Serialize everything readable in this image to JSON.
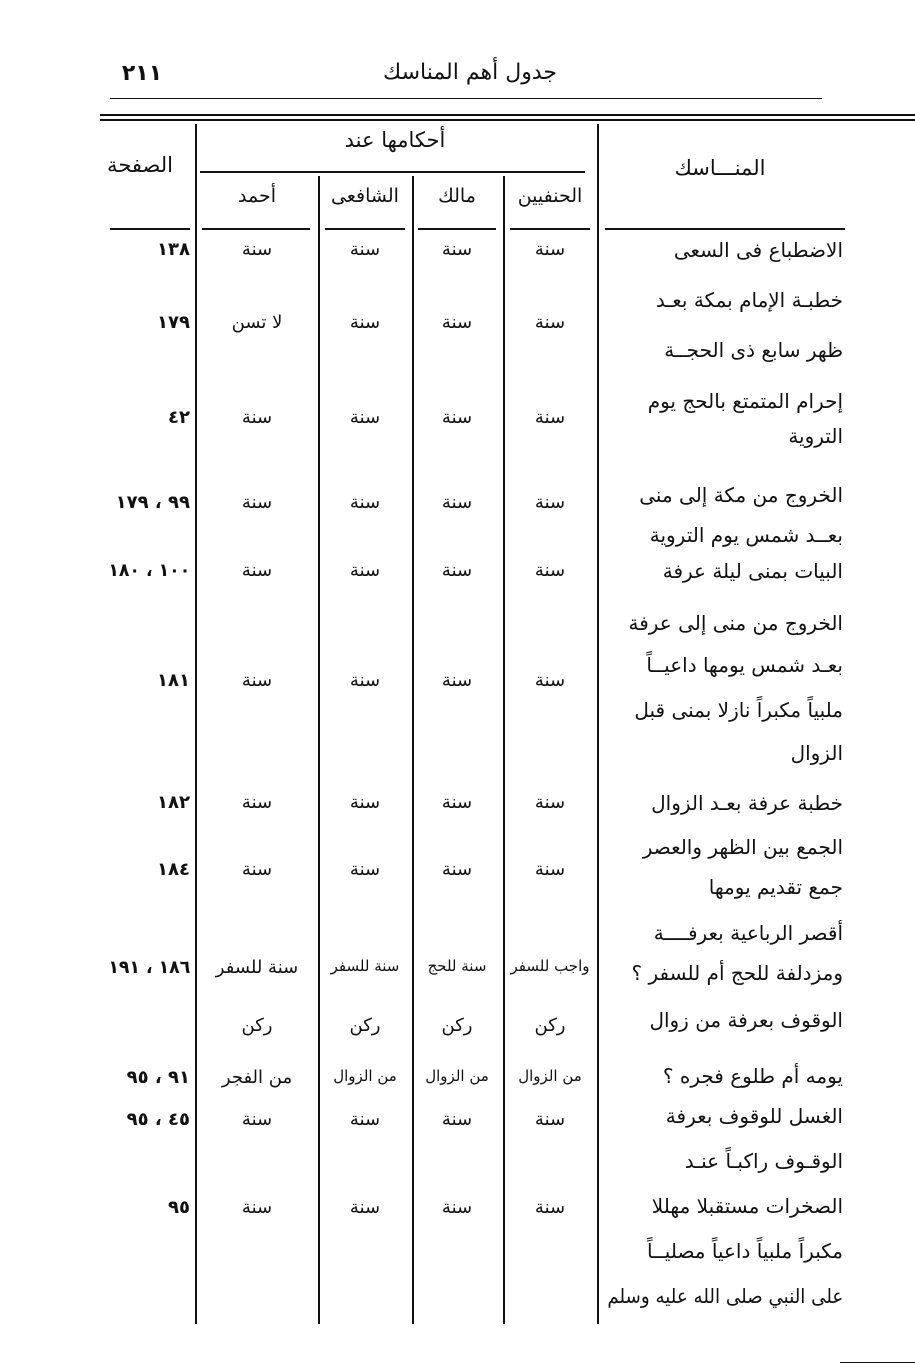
{
  "header": {
    "page_number": "٢١١",
    "title": "جدول أهم المناسك"
  },
  "table": {
    "columns": {
      "rites": "المنـــاسك",
      "rulings_group": "أحكامها عند",
      "hanafi": "الحنفيين",
      "maliki": "مالك",
      "shafii": "الشافعى",
      "ahmad": "أحمد",
      "page": "الصفحة"
    },
    "rows": [
      {
        "rite": [
          "الاضطباع فى السعى"
        ],
        "hanafi": [
          "سنة"
        ],
        "maliki": [
          "سنة"
        ],
        "shafii": [
          "سنة"
        ],
        "ahmad": [
          "سنة"
        ],
        "page": "١٣٨"
      },
      {
        "rite": [
          "خطبـة الإمام بمكة بعـد",
          "ظهر سابع ذى الحجــة"
        ],
        "hanafi": [
          "سنة"
        ],
        "maliki": [
          "سنة"
        ],
        "shafii": [
          "سنة"
        ],
        "ahmad": [
          "لا تسن"
        ],
        "page": "١٧٩"
      },
      {
        "rite": [
          "إحرام المتمتع بالحج يوم",
          "التروية"
        ],
        "hanafi": [
          "سنة"
        ],
        "maliki": [
          "سنة"
        ],
        "shafii": [
          "سنة"
        ],
        "ahmad": [
          "سنة"
        ],
        "page": "٤٢"
      },
      {
        "rite": [
          "الخروج من مكة إلى منى",
          "بعــد شمس يوم التروية"
        ],
        "hanafi": [
          "سنة"
        ],
        "maliki": [
          "سنة"
        ],
        "shafii": [
          "سنة"
        ],
        "ahmad": [
          "سنة"
        ],
        "page": "٩٩ ، ١٧٩"
      },
      {
        "rite": [
          "البيات بمنى ليلة عرفة"
        ],
        "hanafi": [
          "سنة"
        ],
        "maliki": [
          "سنة"
        ],
        "shafii": [
          "سنة"
        ],
        "ahmad": [
          "سنة"
        ],
        "page": "١٠٠ ، ١٨٠"
      },
      {
        "rite": [
          "الخروج من منى إلى عرفة",
          "بعـد شمس يومها داعيــاً",
          "ملبياً مكبراً نازلا بمنى قبل",
          "الزوال"
        ],
        "hanafi": [
          "سنة"
        ],
        "maliki": [
          "سنة"
        ],
        "shafii": [
          "سنة"
        ],
        "ahmad": [
          "سنة"
        ],
        "page": "١٨١"
      },
      {
        "rite": [
          "خطبة عرفة بعـد الزوال"
        ],
        "hanafi": [
          "سنة"
        ],
        "maliki": [
          "سنة"
        ],
        "shafii": [
          "سنة"
        ],
        "ahmad": [
          "سنة"
        ],
        "page": "١٨٢"
      },
      {
        "rite": [
          "الجمع بين الظهر والعصر",
          "جمع تقديم يومها"
        ],
        "hanafi": [
          "سنة"
        ],
        "maliki": [
          "سنة"
        ],
        "shafii": [
          "سنة"
        ],
        "ahmad": [
          "سنة"
        ],
        "page": "١٨٤"
      },
      {
        "rite": [
          "أقصر الرباعية بعرفــــة",
          "ومزدلفة للحج أم للسفر ؟"
        ],
        "hanafi": [
          "واجب للسفر"
        ],
        "maliki": [
          "سنة للحج"
        ],
        "shafii": [
          "سنة للسفر"
        ],
        "ahmad": [
          "سنة للسفر"
        ],
        "page": "١٨٦ ، ١٩١"
      },
      {
        "rite": [
          "الوقوف بعرفة من زوال",
          "يومه أم طلوع فجره ؟"
        ],
        "hanafi": [
          "ركن",
          "من الزوال"
        ],
        "maliki": [
          "ركن",
          "من الزوال"
        ],
        "shafii": [
          "ركن",
          "من الزوال"
        ],
        "ahmad": [
          "ركن",
          "من الفجر"
        ],
        "page": "٩١ ، ٩٥"
      },
      {
        "rite": [
          "الغسل للوقوف بعرفة"
        ],
        "hanafi": [
          "سنة"
        ],
        "maliki": [
          "سنة"
        ],
        "shafii": [
          "سنة"
        ],
        "ahmad": [
          "سنة"
        ],
        "page": "٤٥ ، ٩٥"
      },
      {
        "rite": [
          "الوقـوف راكبـاً عنـد",
          "الصخرات مستقبلا مهللا",
          "مكبراً ملبياً داعياً مصليــاً",
          "على النبي صلى الله عليه وسلم"
        ],
        "hanafi": [
          "سنة"
        ],
        "maliki": [
          "سنة"
        ],
        "shafii": [
          "سنة"
        ],
        "ahmad": [
          "سنة"
        ],
        "page": "٩٥"
      }
    ]
  }
}
